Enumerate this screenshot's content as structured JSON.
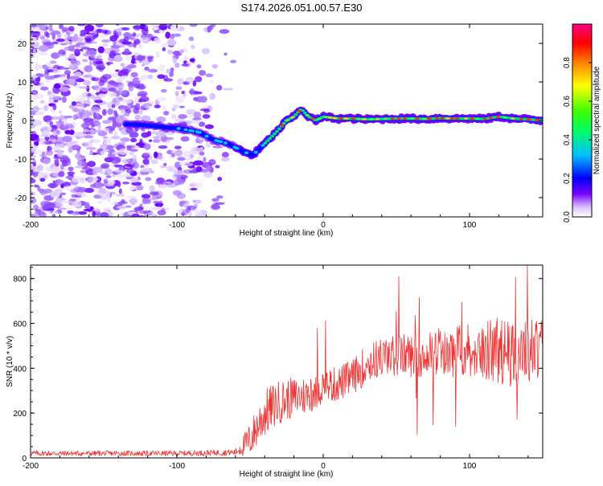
{
  "page_title": "S174.2026.051.00.57.E30",
  "chart_data": [
    {
      "type": "heatmap",
      "title": "S174.2026.051.00.57.E30",
      "xlabel": "Height of straight line (km)",
      "ylabel": "Frequency (Hz)",
      "xlim": [
        -200,
        150
      ],
      "ylim": [
        -25,
        25
      ],
      "xticks": [
        "-200",
        "-100",
        "0",
        "100"
      ],
      "yticks": [
        "20",
        "10",
        "0",
        "-10",
        "-20"
      ],
      "colorbar": {
        "label": "Normalized spectral amplitude",
        "range": [
          0.0,
          1.0
        ],
        "ticks": [
          "0.0",
          "0.2",
          "0.4",
          "0.6",
          "0.8"
        ],
        "colors": [
          "#ffffff",
          "#c8a0ff",
          "#6000ff",
          "#0000ff",
          "#00c0ff",
          "#00ff80",
          "#40ff00",
          "#ffff00",
          "#ff8000",
          "#ff0000",
          "#ff0080"
        ]
      },
      "ridge": {
        "x": [
          -130,
          -115,
          -100,
          -85,
          -75,
          -65,
          -55,
          -48,
          -40,
          -32,
          -25,
          -20,
          -15,
          -10,
          -5,
          0,
          10,
          20,
          30,
          40,
          50,
          60,
          70,
          80,
          90,
          100,
          110,
          120,
          130,
          140,
          150
        ],
        "y": [
          -1,
          -1.5,
          -2,
          -3,
          -5,
          -6,
          -8,
          -9,
          -6,
          -3,
          0,
          1,
          3,
          1,
          0,
          1,
          0.5,
          0.5,
          0.3,
          0.4,
          0.5,
          0.5,
          0.4,
          0.6,
          0.5,
          0.5,
          0.4,
          1,
          0.5,
          0.3,
          0
        ]
      }
    },
    {
      "type": "line",
      "xlabel": "Height of straight line (km)",
      "ylabel": "SNR (10 * v/v)",
      "xlim": [
        -200,
        150
      ],
      "ylim": [
        0,
        860
      ],
      "xticks": [
        "-200",
        "-100",
        "0",
        "100"
      ],
      "yticks": [
        "800",
        "600",
        "400",
        "200",
        "0"
      ],
      "series": [
        {
          "name": "SNR",
          "color": "#ee3333",
          "envelope_x": [
            -200,
            -100,
            -60,
            -50,
            -40,
            -30,
            -20,
            -10,
            0,
            10,
            20,
            30,
            40,
            60,
            80,
            100,
            110,
            120,
            130,
            140,
            150
          ],
          "envelope_y": [
            20,
            20,
            25,
            80,
            200,
            250,
            270,
            280,
            320,
            330,
            360,
            420,
            450,
            460,
            470,
            480,
            490,
            480,
            460,
            480,
            490
          ],
          "envelope_noise": [
            12,
            12,
            15,
            80,
            110,
            100,
            90,
            90,
            80,
            80,
            80,
            90,
            90,
            100,
            110,
            130,
            140,
            150,
            150,
            150,
            140
          ]
        }
      ]
    }
  ]
}
